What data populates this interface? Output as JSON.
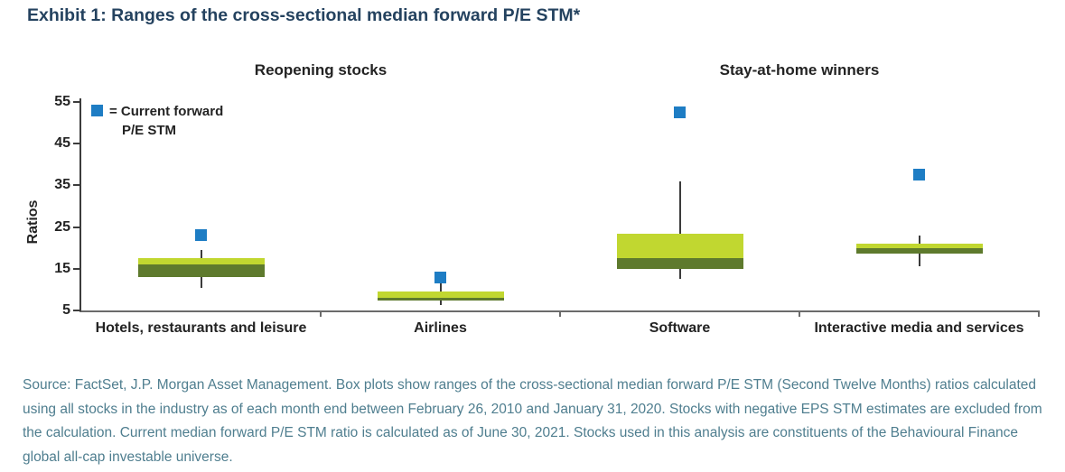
{
  "chart_data": {
    "type": "boxplot",
    "title": "Exhibit 1: Ranges of the cross-sectional median forward P/E STM*",
    "ylabel": "Ratios",
    "ylim": [
      5,
      55
    ],
    "yticks": [
      5,
      15,
      25,
      35,
      45,
      55
    ],
    "grid": false,
    "legend": {
      "line1": "= Current forward",
      "line2": "P/E STM",
      "marker": "blue-square"
    },
    "group_headers": [
      {
        "label": "Reopening stocks",
        "categories": [
          0,
          1
        ]
      },
      {
        "label": "Stay-at-home winners",
        "categories": [
          2,
          3
        ]
      }
    ],
    "categories": [
      "Hotels, restaurants and leisure",
      "Airlines",
      "Software",
      "Interactive media and services"
    ],
    "series": [
      {
        "category": "Hotels, restaurants and leisure",
        "whisker_low": 10.5,
        "q1": 13,
        "median": 16,
        "q3": 17.5,
        "whisker_high": 19.5,
        "current": 23
      },
      {
        "category": "Airlines",
        "whisker_low": 6.3,
        "q1": 7.3,
        "median": 8,
        "q3": 9.5,
        "whisker_high": 13,
        "current": 13
      },
      {
        "category": "Software",
        "whisker_low": 12.5,
        "q1": 15,
        "median": 17.5,
        "q3": 23.5,
        "whisker_high": 36,
        "current": 52.5
      },
      {
        "category": "Interactive media and services",
        "whisker_low": 15.5,
        "q1": 18.7,
        "median": 20,
        "q3": 21,
        "whisker_high": 23,
        "current": 37.5
      }
    ],
    "colors": {
      "box_upper": "#c1d730",
      "box_lower": "#5e7a2d",
      "current_marker": "#1e7dc4",
      "axis": "#3c3c3c",
      "title": "#24425f",
      "footnote": "#4f7e8f"
    }
  },
  "footnote": "Source: FactSet, J.P. Morgan Asset Management. Box plots show ranges of the cross-sectional median forward P/E STM (Second Twelve Months) ratios calculated using all stocks in the industry as of each month end between February 26, 2010 and January 31, 2020. Stocks with negative EPS STM estimates are excluded from the calculation. Current median forward P/E STM ratio is calculated as of June 30, 2021. Stocks used in this analysis are constituents of the Behavioural Finance global all-cap investable universe."
}
